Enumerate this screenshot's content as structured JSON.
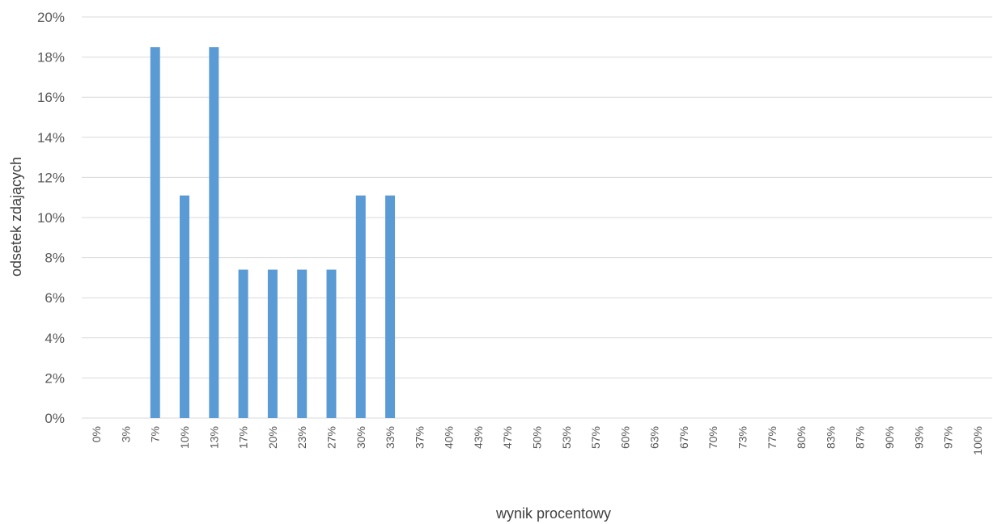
{
  "chart_data": {
    "type": "bar",
    "title": "",
    "xlabel": "wynik procentowy",
    "ylabel": "odsetek zdających",
    "categories": [
      "0%",
      "3%",
      "7%",
      "10%",
      "13%",
      "17%",
      "20%",
      "23%",
      "27%",
      "30%",
      "33%",
      "37%",
      "40%",
      "43%",
      "47%",
      "50%",
      "53%",
      "57%",
      "60%",
      "63%",
      "67%",
      "70%",
      "73%",
      "77%",
      "80%",
      "83%",
      "87%",
      "90%",
      "93%",
      "97%",
      "100%"
    ],
    "values": [
      0,
      0,
      18.5,
      11.1,
      18.5,
      7.4,
      7.4,
      7.4,
      7.4,
      11.1,
      11.1,
      0,
      0,
      0,
      0,
      0,
      0,
      0,
      0,
      0,
      0,
      0,
      0,
      0,
      0,
      0,
      0,
      0,
      0,
      0,
      0
    ],
    "ylim": [
      0,
      20
    ],
    "yticks": [
      "0%",
      "2%",
      "4%",
      "6%",
      "8%",
      "10%",
      "12%",
      "14%",
      "16%",
      "18%",
      "20%"
    ],
    "grid": true,
    "legend": "none",
    "bar_color": "#5b9bd5"
  }
}
